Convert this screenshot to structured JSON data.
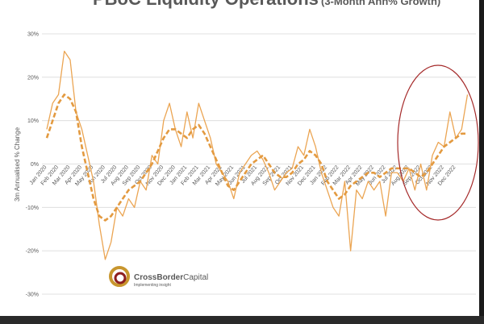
{
  "chart_data": {
    "type": "line",
    "title": "PBoC Liquidity Operations",
    "subtitle": "(3-Month Ann% Growth)",
    "y_label": "3m Annualised % Change",
    "categories": [
      "Jan 2020",
      null,
      "Feb 2020",
      null,
      "Mar 2020",
      null,
      "Apr 2020",
      null,
      "May 2020",
      null,
      "Jun 2020",
      null,
      "Jul 2020",
      null,
      "Aug 2020",
      null,
      "Sep 2020",
      null,
      "Oct 2020",
      null,
      "Nov 2020",
      null,
      "Dec 2020",
      null,
      "Jan 2021",
      null,
      "Feb 2021",
      null,
      "Mar 2021",
      null,
      "Apr 2021",
      null,
      "May 2021",
      null,
      "Jun 2021",
      null,
      "Jul 2021",
      null,
      "Aug 2021",
      null,
      "Sep 2021",
      null,
      "Oct 2021",
      null,
      "Nov 2021",
      null,
      "Dec 2021",
      null,
      "Jan 2022",
      null,
      "Feb 2022",
      null,
      "Mar 2022",
      null,
      "Apr 2022",
      null,
      "May 2022",
      null,
      "Jun 2022",
      null,
      "Jul 2022",
      null,
      "Aug 2022",
      null,
      "Sep 2022",
      null,
      "Oct 2022",
      null,
      "Nov 2022",
      null,
      "Dec 2022",
      null,
      null
    ],
    "series": [
      {
        "color": "#eba553",
        "dashed": false,
        "values": [
          8,
          14,
          16,
          26,
          24,
          12,
          8,
          2,
          -4,
          -14,
          -22,
          -18,
          -10,
          -12,
          -8,
          -10,
          -4,
          -6,
          2,
          0,
          10,
          14,
          8,
          4,
          12,
          6,
          14,
          10,
          6,
          0,
          -2,
          -4,
          -8,
          -2,
          0,
          2,
          3,
          1,
          -2,
          -6,
          -4,
          -2,
          -1,
          4,
          2,
          8,
          4,
          -2,
          -6,
          -10,
          -12,
          -4,
          -20,
          -6,
          -8,
          -4,
          -6,
          -4,
          -12,
          -2,
          -2,
          -4,
          -1,
          -6,
          0,
          -6,
          2,
          5,
          4,
          12,
          6,
          8,
          16
        ]
      },
      {
        "color": "#e39a40",
        "dashed": true,
        "values": [
          6,
          10,
          14,
          16,
          15,
          12,
          4,
          -2,
          -8,
          -12,
          -13,
          -12,
          -10,
          -8,
          -6,
          -5,
          -4,
          -2,
          0,
          3,
          6,
          8,
          8,
          7,
          6,
          8,
          9,
          7,
          4,
          1,
          -2,
          -5,
          -6,
          -4,
          -2,
          0,
          1,
          2,
          0,
          -2,
          -3,
          -3,
          -2,
          0,
          1,
          3,
          2,
          0,
          -4,
          -6,
          -8,
          -7,
          -5,
          -4,
          -3,
          -2,
          -2,
          -3,
          -2,
          -1,
          -1,
          -1,
          -1,
          -2,
          -3,
          -2,
          0,
          2,
          4,
          5,
          6,
          7,
          7
        ]
      }
    ],
    "ylim": [
      -30,
      30
    ],
    "yticks": [
      {
        "value": 30,
        "label": "30%"
      },
      {
        "value": 20,
        "label": "20%"
      },
      {
        "value": 10,
        "label": "10%"
      },
      {
        "value": 0,
        "label": "0%"
      },
      {
        "value": -10,
        "label": "-10%"
      },
      {
        "value": -20,
        "label": "-20%"
      },
      {
        "value": -30,
        "label": "-30%"
      }
    ],
    "grid": true
  },
  "logo": {
    "name": "CrossBorder",
    "name2": "Capital",
    "tagline": "Implementing insight"
  }
}
